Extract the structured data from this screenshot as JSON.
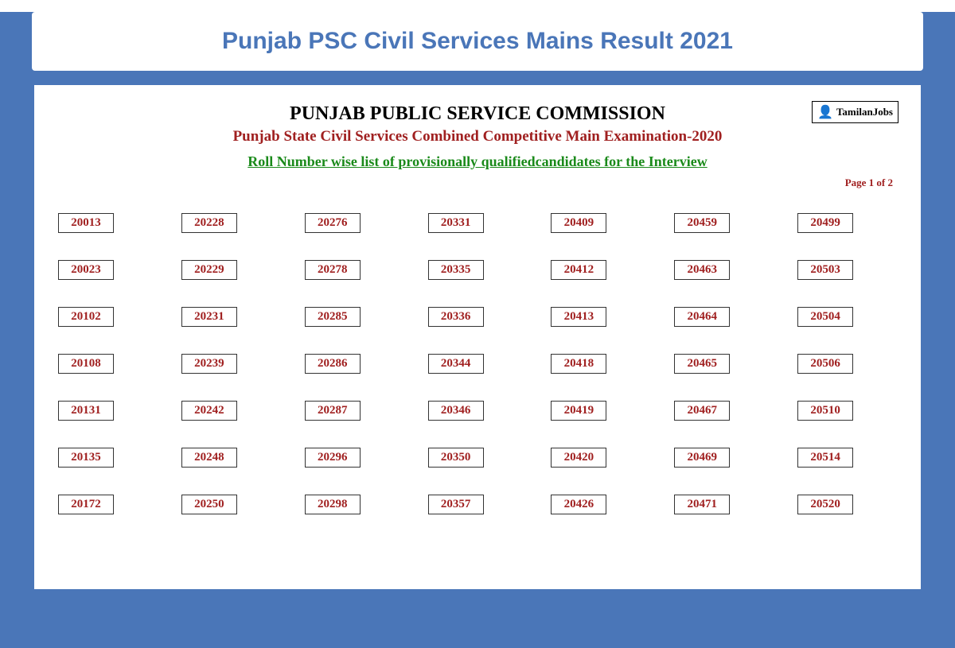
{
  "banner": {
    "title": "Punjab PSC Civil Services Mains Result 2021"
  },
  "document": {
    "org_name": "PUNJAB PUBLIC SERVICE COMMISSION",
    "exam_name": "Punjab State Civil Services Combined Competitive Main Examination-2020",
    "list_title": "Roll Number wise list of provisionally qualifiedcandidates for the Interview",
    "page_indicator": "Page 1 of 2",
    "watermark_text": "TamilanJobs",
    "watermark_icon": "👤"
  },
  "roll_numbers": [
    "20013",
    "20228",
    "20276",
    "20331",
    "20409",
    "20459",
    "20499",
    "20023",
    "20229",
    "20278",
    "20335",
    "20412",
    "20463",
    "20503",
    "20102",
    "20231",
    "20285",
    "20336",
    "20413",
    "20464",
    "20504",
    "20108",
    "20239",
    "20286",
    "20344",
    "20418",
    "20465",
    "20506",
    "20131",
    "20242",
    "20287",
    "20346",
    "20419",
    "20467",
    "20510",
    "20135",
    "20248",
    "20296",
    "20350",
    "20420",
    "20469",
    "20514",
    "20172",
    "20250",
    "20298",
    "20357",
    "20426",
    "20471",
    "20520"
  ],
  "colors": {
    "brand_blue": "#4a76b8",
    "dark_red": "#a02020",
    "green": "#1a8a1a",
    "black": "#000000",
    "white": "#ffffff",
    "border_gray": "#333333"
  }
}
